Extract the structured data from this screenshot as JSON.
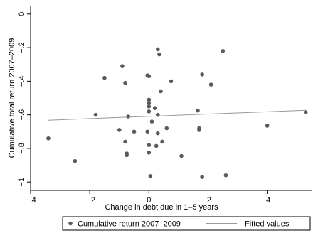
{
  "chart_data": {
    "type": "scatter",
    "xlabel": "Change in debt due in 1–5 years",
    "ylabel": "Cumulative total return 2007–2009",
    "xlim": [
      -0.4,
      0.55
    ],
    "ylim": [
      -1.05,
      0.05
    ],
    "x_ticks": [
      -0.4,
      -0.2,
      0,
      0.2,
      0.4
    ],
    "x_tick_labels": [
      "−.4",
      "−.2",
      "0",
      ".2",
      ".4"
    ],
    "y_ticks": [
      -1,
      -0.8,
      -0.6,
      -0.4,
      -0.2,
      0
    ],
    "y_tick_labels": [
      "−1",
      "−.8",
      "−.6",
      "−.4",
      "−.2",
      "0"
    ],
    "grid": false,
    "legend_position": "bottom",
    "series": [
      {
        "name": "Cumulative return 2007–2009",
        "kind": "scatter",
        "color": "#5a5a5a",
        "points": [
          [
            -0.34,
            -0.74
          ],
          [
            -0.25,
            -0.875
          ],
          [
            -0.18,
            -0.6
          ],
          [
            -0.15,
            -0.38
          ],
          [
            -0.09,
            -0.31
          ],
          [
            -0.08,
            -0.41
          ],
          [
            -0.07,
            -0.61
          ],
          [
            -0.05,
            -0.7
          ],
          [
            -0.1,
            -0.69
          ],
          [
            -0.08,
            -0.76
          ],
          [
            -0.075,
            -0.83
          ],
          [
            -0.075,
            -0.84
          ],
          [
            -0.005,
            -0.365
          ],
          [
            0.0,
            -0.37
          ],
          [
            0.0,
            -0.51
          ],
          [
            0.0,
            -0.53
          ],
          [
            0.0,
            -0.55
          ],
          [
            0.0,
            -0.58
          ],
          [
            -0.005,
            -0.7
          ],
          [
            0.0,
            -0.78
          ],
          [
            0.0,
            -0.825
          ],
          [
            0.005,
            -0.965
          ],
          [
            0.01,
            -0.64
          ],
          [
            0.02,
            -0.56
          ],
          [
            0.03,
            -0.21
          ],
          [
            0.035,
            -0.24
          ],
          [
            0.03,
            -0.6
          ],
          [
            0.03,
            -0.71
          ],
          [
            0.025,
            -0.785
          ],
          [
            0.04,
            -0.46
          ],
          [
            0.045,
            -0.76
          ],
          [
            0.06,
            -0.68
          ],
          [
            0.075,
            -0.4
          ],
          [
            0.11,
            -0.845
          ],
          [
            0.165,
            -0.575
          ],
          [
            0.17,
            -0.68
          ],
          [
            0.17,
            -0.69
          ],
          [
            0.18,
            -0.36
          ],
          [
            0.18,
            -0.97
          ],
          [
            0.21,
            -0.42
          ],
          [
            0.25,
            -0.22
          ],
          [
            0.26,
            -0.96
          ],
          [
            0.4,
            -0.665
          ],
          [
            0.53,
            -0.585
          ]
        ]
      },
      {
        "name": "Fitted values",
        "kind": "line",
        "color": "#9a9a9a",
        "points": [
          [
            -0.34,
            -0.632
          ],
          [
            0.53,
            -0.573
          ]
        ]
      }
    ]
  }
}
